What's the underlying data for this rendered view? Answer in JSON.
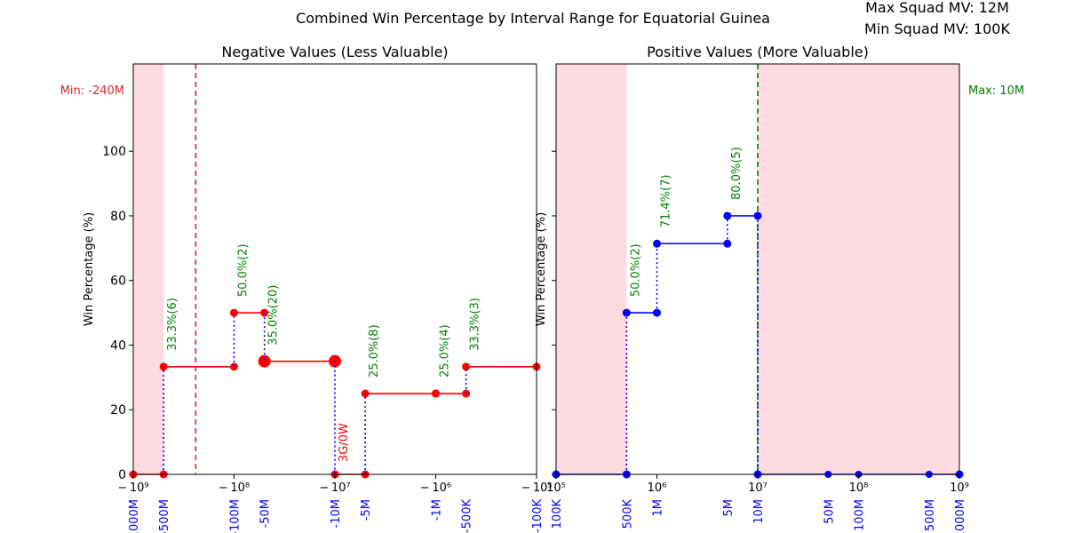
{
  "figure": {
    "title": "Combined Win Percentage by Interval Range for Equatorial Guinea",
    "info_max": "Max Squad MV: 12M",
    "info_min": "Min Squad MV: 100K"
  },
  "chart_data": [
    {
      "type": "line",
      "title": "Negative Values (Less Valuable)",
      "ylabel": "Win Percentage (%)",
      "xscale": "symlog (negative side)",
      "xlim": [
        -1000000000,
        -100000
      ],
      "ylim": [
        0,
        127
      ],
      "grid": false,
      "ticks_top": [
        "− 10⁹",
        "− 10⁸",
        "− 10⁷",
        "− 10⁶",
        "− 10⁵"
      ],
      "tick_values_top": [
        -1000000000,
        -100000000,
        -10000000,
        -1000000,
        -100000
      ],
      "yticks": [
        "0",
        "20",
        "40",
        "60",
        "80",
        "100"
      ],
      "ytick_values": [
        0,
        20,
        40,
        60,
        80,
        100
      ],
      "interval_labels": [
        {
          "text": "-1000M",
          "value": -1000000000
        },
        {
          "text": "-500M",
          "value": -500000000
        },
        {
          "text": "-100M",
          "value": -100000000
        },
        {
          "text": "-50M",
          "value": -50000000
        },
        {
          "text": "-10M",
          "value": -10000000
        },
        {
          "text": "-5M",
          "value": -5000000
        },
        {
          "text": "-1M",
          "value": -1000000
        },
        {
          "text": "-500K",
          "value": -500000
        },
        {
          "text": "-100K",
          "value": -100000
        }
      ],
      "shaded_ranges": [
        [
          -1000000000,
          -500000000
        ]
      ],
      "reference_line": {
        "value": -240000000,
        "label": "Min: -240M",
        "color": "#d62728"
      },
      "color": "#ff0000",
      "segments": [
        {
          "x": [
            -1000000000,
            -500000000
          ],
          "y": 0,
          "label": ""
        },
        {
          "x": [
            -500000000,
            -100000000
          ],
          "y": 33.3,
          "label": "33.3%(6)"
        },
        {
          "x": [
            -100000000,
            -50000000
          ],
          "y": 50.0,
          "label": "50.0%(2)"
        },
        {
          "x": [
            -50000000,
            -10000000
          ],
          "y": 35.0,
          "label": "35.0%(20)",
          "big": true
        },
        {
          "x": [
            -10000000,
            -5000000
          ],
          "y": 0,
          "label": "3G/0W",
          "label_color": "#ff0000"
        },
        {
          "x": [
            -5000000,
            -1000000
          ],
          "y": 25.0,
          "label": "25.0%(8)"
        },
        {
          "x": [
            -1000000,
            -500000
          ],
          "y": 25.0,
          "label": "25.0%(4)"
        },
        {
          "x": [
            -500000,
            -100000
          ],
          "y": 33.3,
          "label": "33.3%(3)"
        }
      ]
    },
    {
      "type": "line",
      "title": "Positive Values (More Valuable)",
      "ylabel": "Win Percentage (%)",
      "xscale": "log",
      "xlim": [
        100000,
        1000000000
      ],
      "ylim": [
        0,
        127
      ],
      "grid": false,
      "ticks_top": [
        "10⁵",
        "10⁶",
        "10⁷",
        "10⁸",
        "10⁹"
      ],
      "tick_values_top": [
        100000,
        1000000,
        10000000,
        100000000,
        1000000000
      ],
      "interval_labels": [
        {
          "text": "100K",
          "value": 100000
        },
        {
          "text": "500K",
          "value": 500000
        },
        {
          "text": "1M",
          "value": 1000000
        },
        {
          "text": "5M",
          "value": 5000000
        },
        {
          "text": "10M",
          "value": 10000000
        },
        {
          "text": "50M",
          "value": 50000000
        },
        {
          "text": "100M",
          "value": 100000000
        },
        {
          "text": "500M",
          "value": 500000000
        },
        {
          "text": "1000M",
          "value": 1000000000
        }
      ],
      "shaded_ranges": [
        [
          100000,
          500000
        ],
        [
          10000000,
          1000000000
        ]
      ],
      "reference_line": {
        "value": 10000000,
        "label": "Max: 10M",
        "color": "#008000"
      },
      "color": "#0000ff",
      "segments": [
        {
          "x": [
            100000,
            500000
          ],
          "y": 0,
          "label": ""
        },
        {
          "x": [
            500000,
            1000000
          ],
          "y": 50.0,
          "label": "50.0%(2)"
        },
        {
          "x": [
            1000000,
            5000000
          ],
          "y": 71.4,
          "label": "71.4%(7)"
        },
        {
          "x": [
            5000000,
            10000000
          ],
          "y": 80.0,
          "label": "80.0%(5)"
        },
        {
          "x": [
            10000000,
            1000000000
          ],
          "y": 0,
          "label": ""
        }
      ],
      "extra_zero_points": [
        50000000,
        100000000,
        500000000
      ]
    }
  ]
}
